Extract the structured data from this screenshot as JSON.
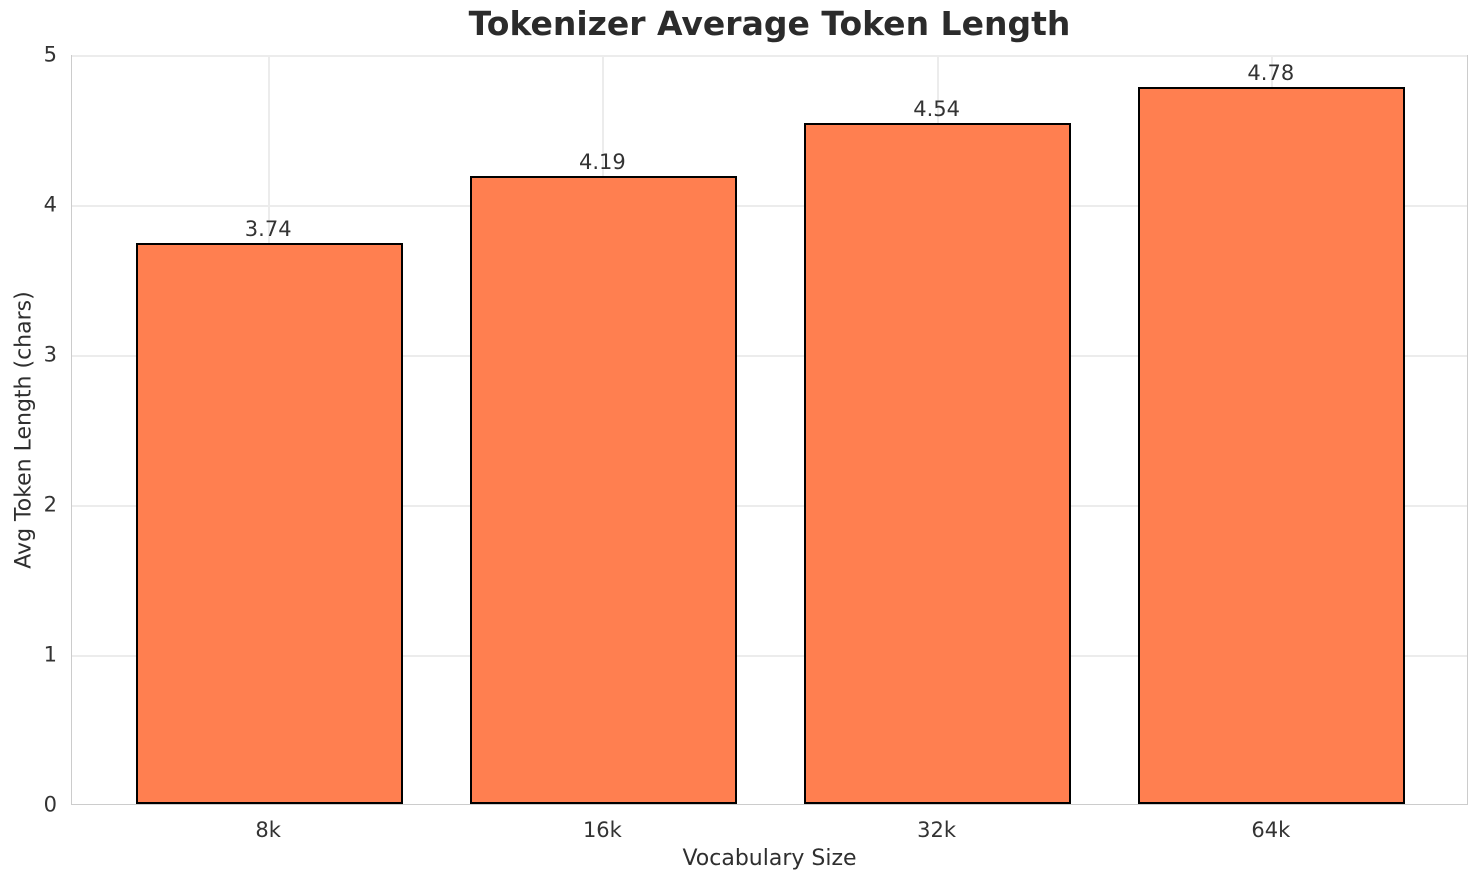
{
  "chart_data": {
    "type": "bar",
    "title": "Tokenizer Average Token Length",
    "xlabel": "Vocabulary Size",
    "ylabel": "Avg Token Length (chars)",
    "categories": [
      "8k",
      "16k",
      "32k",
      "64k"
    ],
    "values": [
      3.74,
      4.19,
      4.54,
      4.78
    ],
    "value_labels": [
      "3.74",
      "4.19",
      "4.54",
      "4.78"
    ],
    "yticks": [
      "0",
      "1",
      "2",
      "3",
      "4",
      "5"
    ],
    "ylim": [
      0,
      5
    ],
    "xlim": [
      -0.59,
      3.59
    ],
    "bar_width_fraction": 0.8,
    "grid": true,
    "legend": "none",
    "colors": {
      "bar_fill": "#FF7F50",
      "bar_edge": "#000000",
      "grid_line": "#ececec",
      "spine": "#cccccc",
      "title_text": "#2b2b2b",
      "tick_text": "#333333",
      "background": "#ffffff"
    }
  }
}
